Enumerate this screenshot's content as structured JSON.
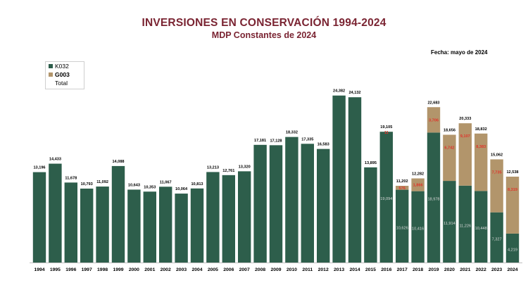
{
  "title": "INVERSIONES EN CONSERVACIÓN 1994-2024",
  "subtitle": "MDP Constantes de 2024",
  "date_note": "Fecha: mayo de 2024",
  "legend": [
    {
      "label": "K032",
      "color": "#2d5e4b"
    },
    {
      "label": "G003",
      "color": "#b2956b"
    },
    {
      "label": "Total",
      "color": ""
    }
  ],
  "colors": {
    "k032": "#2d5e4b",
    "g003": "#b2956b",
    "g003_label": "#e0342a",
    "total_label": "#000000",
    "k032_label": "#d9d9d9",
    "title": "#7a2432"
  },
  "chart_data": {
    "type": "bar",
    "stacked": true,
    "title": "INVERSIONES EN CONSERVACIÓN 1994-2024",
    "subtitle": "MDP Constantes de 2024",
    "ylim": [
      0,
      26000
    ],
    "grid": false,
    "legend_position": "top-left",
    "categories": [
      "1994",
      "1995",
      "1996",
      "1997",
      "1998",
      "1999",
      "2000",
      "2001",
      "2002",
      "2003",
      "2004",
      "2005",
      "2006",
      "2007",
      "2008",
      "2009",
      "2010",
      "2011",
      "2012",
      "2013",
      "2014",
      "2015",
      "2016",
      "2017",
      "2018",
      "2019",
      "2020",
      "2021",
      "2022",
      "2023",
      "2024"
    ],
    "totals": [
      13196,
      14433,
      11678,
      10793,
      11092,
      14088,
      10643,
      10353,
      11067,
      10064,
      10813,
      13213,
      12761,
      13320,
      17181,
      17128,
      18332,
      17335,
      16583,
      24382,
      24132,
      13895,
      19105,
      11202,
      12282,
      22683,
      18656,
      20333,
      18832,
      15062,
      12538
    ],
    "total_labels": [
      "13,196",
      "14,433",
      "11,678",
      "10,793",
      "11,092",
      "14,088",
      "10,643",
      "10,353",
      "11,067",
      "10,064",
      "10,813",
      "13,213",
      "12,761",
      "13,320",
      "17,181",
      "17,128",
      "18,332",
      "17,335",
      "16,583",
      "24,382",
      "24,132",
      "13,895",
      "19,105",
      "11,202",
      "12,282",
      "22,683",
      "18,656",
      "20,333",
      "18,832",
      "15,062",
      "12,538"
    ],
    "series": [
      {
        "name": "K032",
        "values": [
          13196,
          14433,
          11678,
          10793,
          11092,
          14088,
          10643,
          10353,
          11067,
          10064,
          10813,
          13213,
          12761,
          13320,
          17181,
          17128,
          18332,
          17335,
          16583,
          24382,
          24132,
          13895,
          19094,
          10626,
          10416,
          18978,
          11914,
          11226,
          10448,
          7327,
          4219
        ],
        "labels": [
          "",
          "",
          "",
          "",
          "",
          "",
          "",
          "",
          "",
          "",
          "",
          "",
          "",
          "",
          "",
          "",
          "",
          "",
          "",
          "",
          "",
          "",
          "19,094",
          "10,626",
          "10,416",
          "18,978",
          "11,914",
          "11,226",
          "10,448",
          "7,327",
          "4,219"
        ]
      },
      {
        "name": "G003",
        "values": [
          0,
          0,
          0,
          0,
          0,
          0,
          0,
          0,
          0,
          0,
          0,
          0,
          0,
          0,
          0,
          0,
          0,
          0,
          0,
          0,
          0,
          0,
          11,
          576,
          1866,
          3706,
          6742,
          9107,
          8383,
          7735,
          8319
        ],
        "labels": [
          "",
          "",
          "",
          "",
          "",
          "",
          "",
          "",
          "",
          "",
          "",
          "",
          "",
          "",
          "",
          "",
          "",
          "",
          "",
          "",
          "",
          "",
          "11",
          "576",
          "1,866",
          "3,706",
          "6,742",
          "9,107",
          "8,383",
          "7,735",
          "8,319"
        ]
      }
    ]
  }
}
